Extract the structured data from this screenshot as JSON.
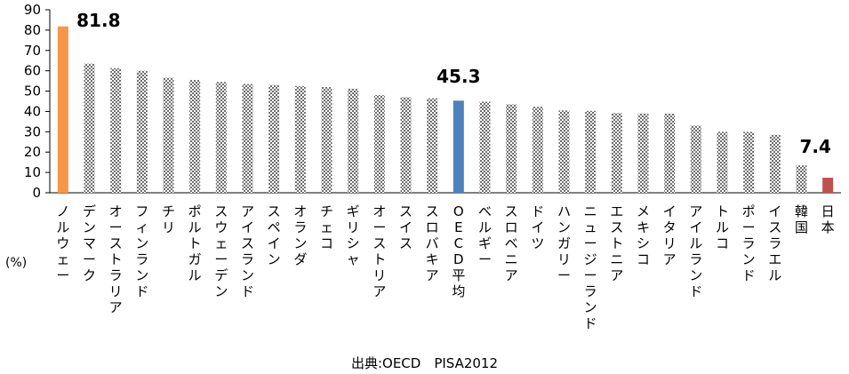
{
  "chart_data": {
    "type": "bar",
    "ylabel": "(%)",
    "ylim": [
      0,
      90
    ],
    "ytick_step": 10,
    "grid": false,
    "legend": "none",
    "source": "出典:OECD　PISA2012",
    "categories": [
      "ノルウェー",
      "デンマーク",
      "オーストラリア",
      "フィンランド",
      "チリ",
      "ポルトガル",
      "スウェーデン",
      "アイスランド",
      "スペイン",
      "オランダ",
      "チェコ",
      "ギリシャ",
      "オーストリア",
      "スイス",
      "スロバキア",
      "OECD平均",
      "ベルギー",
      "スロベニア",
      "ドイツ",
      "ハンガリー",
      "ニュージーランド",
      "エストニア",
      "メキシコ",
      "イタリア",
      "アイルランド",
      "トルコ",
      "ポーランド",
      "イスラエル",
      "韓国",
      "日本"
    ],
    "values": [
      81.8,
      63.5,
      61.3,
      60.0,
      56.5,
      55.5,
      54.5,
      53.5,
      53.0,
      52.5,
      52.0,
      51.2,
      48.0,
      47.0,
      46.5,
      45.3,
      44.8,
      43.5,
      42.3,
      40.5,
      40.3,
      39.2,
      39.0,
      39.0,
      33.0,
      30.0,
      30.0,
      28.5,
      13.5,
      7.4
    ],
    "highlights": [
      {
        "category": "ノルウェー",
        "label": "81.8",
        "color": "#f79646"
      },
      {
        "category": "OECD平均",
        "label": "45.3",
        "color": "#4f81bd"
      },
      {
        "category": "日本",
        "label": "7.4",
        "color": "#c0504d"
      }
    ],
    "default_bar_pattern": "checker",
    "default_bar_colors": [
      "#7f7f7f",
      "#ffffff"
    ]
  }
}
